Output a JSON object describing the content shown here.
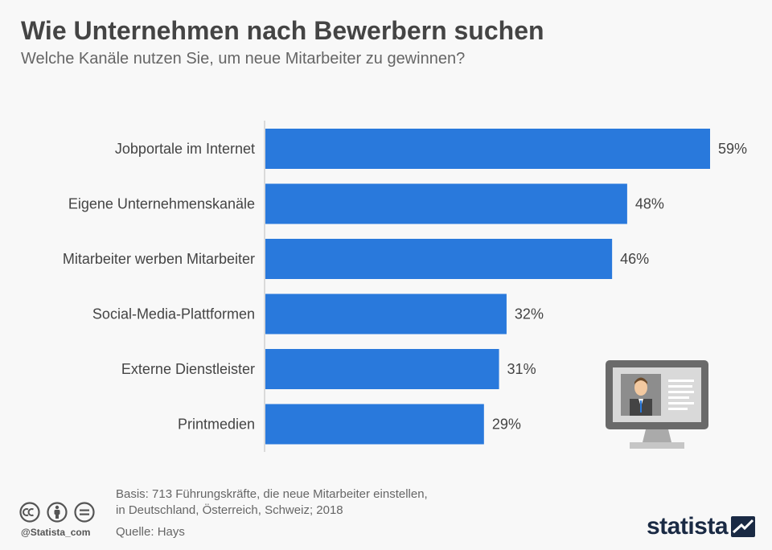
{
  "header": {
    "title": "Wie Unternehmen nach Bewerbern suchen",
    "subtitle": "Welche Kanäle nutzen Sie, um neue Mitarbeiter zu gewinnen?"
  },
  "chart_data": {
    "type": "bar",
    "orientation": "horizontal",
    "categories": [
      "Jobportale im Internet",
      "Eigene Unternehmenskanäle",
      "Mitarbeiter werben Mitarbeiter",
      "Social-Media-Plattformen",
      "Externe Dienstleister",
      "Printmedien"
    ],
    "values": [
      59,
      48,
      46,
      32,
      31,
      29
    ],
    "value_labels": [
      "59%",
      "48%",
      "46%",
      "32%",
      "31%",
      "29%"
    ],
    "unit": "%",
    "xlim": [
      0,
      59
    ],
    "bar_color": "#2979dc",
    "grid": false
  },
  "footer": {
    "basis_line1": "Basis: 713 Führungskräfte, die neue Mitarbeiter einstellen,",
    "basis_line2": "in Deutschland, Österreich, Schweiz; 2018",
    "source": "Quelle: Hays",
    "handle": "@Statista_com",
    "brand": "statista"
  },
  "colors": {
    "bar": "#2979dc",
    "title": "#444444",
    "brand": "#1a2a44"
  },
  "icons": [
    "cc-icon",
    "by-icon",
    "nd-icon",
    "monitor-user-icon",
    "statista-logo-icon"
  ]
}
